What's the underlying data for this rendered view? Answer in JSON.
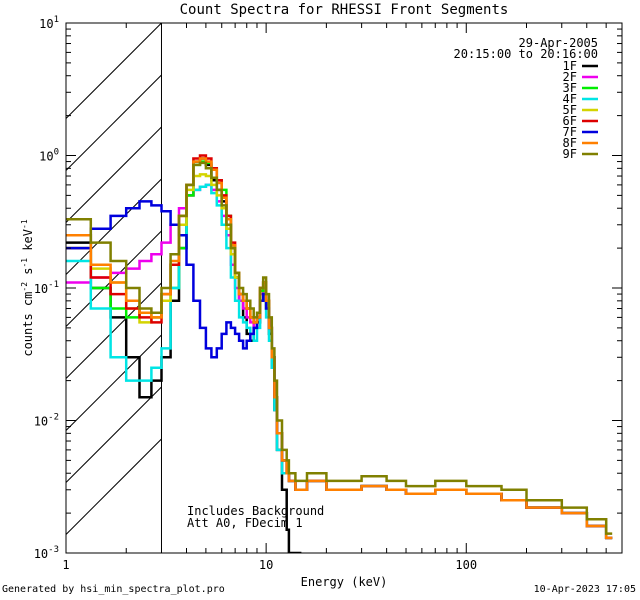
{
  "chart_data": {
    "type": "line",
    "title": "Count Spectra for RHESSI Front Segments",
    "xlabel": "Energy (keV)",
    "ylabel_parts": [
      "counts cm",
      "-2",
      " s",
      "-1",
      " keV",
      "-1"
    ],
    "xscale": "log",
    "yscale": "log",
    "xlim": [
      1,
      600
    ],
    "ylim": [
      0.001,
      10
    ],
    "x_tick_labels": [
      {
        "v": 1,
        "t": "1"
      },
      {
        "v": 10,
        "t": "10"
      },
      {
        "v": 100,
        "t": "100"
      }
    ],
    "y_tick_labels": [
      {
        "v": 0.001,
        "m": "10",
        "e": "-3"
      },
      {
        "v": 0.01,
        "m": "10",
        "e": "-2"
      },
      {
        "v": 0.1,
        "m": "10",
        "e": "-1"
      },
      {
        "v": 1,
        "m": "10",
        "e": "0"
      },
      {
        "v": 10,
        "m": "10",
        "e": "1"
      }
    ],
    "attenuator_region_keV": [
      1,
      3
    ],
    "date": "29-Apr-2005",
    "time_range": "20:15:00 to 20:16:00",
    "annotations": [
      "Includes Background",
      "Att A0, FDecim 1"
    ],
    "series": [
      {
        "name": "1F",
        "color": "#000000",
        "x": [
          1,
          1.33,
          1.67,
          2,
          2.33,
          2.67,
          3,
          3.33,
          3.67,
          4,
          4.33,
          4.67,
          5,
          5.33,
          5.67,
          6,
          6.33,
          6.67,
          7,
          7.33,
          7.67,
          8,
          8.33,
          8.67,
          9,
          9.33,
          9.67,
          10,
          10.33,
          10.67,
          11,
          11.33,
          12,
          12.67,
          13,
          14
        ],
        "y": [
          0.22,
          0.1,
          0.06,
          0.03,
          0.015,
          0.02,
          0.03,
          0.08,
          0.2,
          0.5,
          0.9,
          0.95,
          0.85,
          0.65,
          0.55,
          0.45,
          0.3,
          0.2,
          0.12,
          0.08,
          0.06,
          0.045,
          0.04,
          0.05,
          0.055,
          0.1,
          0.11,
          0.07,
          0.045,
          0.025,
          0.012,
          0.006,
          0.003,
          0.0015,
          0.001,
          0.001
        ]
      },
      {
        "name": "2F",
        "color": "#ee00ee",
        "x": [
          1,
          1.33,
          1.67,
          2,
          2.33,
          2.67,
          3,
          3.33,
          3.67,
          4,
          4.33,
          4.67,
          5,
          5.33,
          5.67,
          6,
          6.33,
          6.67,
          7,
          7.33,
          7.67,
          8,
          8.33,
          8.67,
          9,
          9.33,
          9.67,
          10,
          10.33,
          10.67,
          11,
          11.33,
          12,
          12.67,
          13,
          14,
          16,
          20,
          25,
          30,
          40,
          50,
          70,
          100,
          150,
          200,
          300,
          400,
          500
        ],
        "y": [
          0.11,
          0.12,
          0.13,
          0.14,
          0.16,
          0.18,
          0.22,
          0.3,
          0.4,
          0.5,
          0.55,
          0.58,
          0.6,
          0.55,
          0.45,
          0.35,
          0.25,
          0.15,
          0.1,
          0.08,
          0.07,
          0.06,
          0.055,
          0.05,
          0.06,
          0.09,
          0.1,
          0.08,
          0.05,
          0.03,
          0.015,
          0.008,
          0.005,
          0.004,
          0.0035,
          0.003,
          0.0035,
          0.003,
          0.003,
          0.0032,
          0.003,
          0.0028,
          0.003,
          0.0028,
          0.0025,
          0.0022,
          0.002,
          0.0016,
          0.0013
        ]
      },
      {
        "name": "3F",
        "color": "#00ee00",
        "x": [
          1,
          1.33,
          1.67,
          2,
          2.33,
          2.67,
          3,
          3.33,
          3.67,
          4,
          4.33,
          4.67,
          5,
          5.33,
          5.67,
          6,
          6.33,
          6.67,
          7,
          7.33,
          7.67,
          8,
          8.33,
          8.67,
          9,
          9.33,
          9.67,
          10,
          10.33,
          10.67,
          11,
          11.33,
          12,
          12.67,
          13,
          14,
          16,
          20,
          25,
          30,
          40,
          50,
          70,
          100,
          150,
          200,
          300,
          400,
          500
        ],
        "y": [
          0.2,
          0.1,
          0.07,
          0.06,
          0.065,
          0.06,
          0.08,
          0.1,
          0.2,
          0.5,
          0.85,
          0.9,
          0.88,
          0.78,
          0.65,
          0.55,
          0.35,
          0.2,
          0.12,
          0.09,
          0.08,
          0.07,
          0.06,
          0.055,
          0.06,
          0.095,
          0.1,
          0.075,
          0.05,
          0.03,
          0.015,
          0.008,
          0.005,
          0.004,
          0.0035,
          0.003,
          0.0035,
          0.003,
          0.003,
          0.0032,
          0.003,
          0.0028,
          0.003,
          0.0028,
          0.0025,
          0.0022,
          0.002,
          0.0016,
          0.0013
        ]
      },
      {
        "name": "4F",
        "color": "#00e5e5",
        "x": [
          1,
          1.33,
          1.67,
          2,
          2.33,
          2.67,
          3,
          3.33,
          3.67,
          4,
          4.33,
          4.67,
          5,
          5.33,
          5.67,
          6,
          6.33,
          6.67,
          7,
          7.33,
          7.67,
          8,
          8.33,
          8.67,
          9,
          9.33,
          9.67,
          10,
          10.33,
          10.67,
          11,
          11.33,
          12,
          12.67,
          13,
          14,
          16,
          20,
          25,
          30,
          40,
          50,
          70,
          100,
          150,
          200,
          300,
          400,
          500
        ],
        "y": [
          0.16,
          0.07,
          0.03,
          0.02,
          0.02,
          0.025,
          0.035,
          0.1,
          0.25,
          0.6,
          0.55,
          0.58,
          0.6,
          0.52,
          0.42,
          0.3,
          0.2,
          0.12,
          0.08,
          0.06,
          0.055,
          0.05,
          0.045,
          0.04,
          0.05,
          0.08,
          0.09,
          0.06,
          0.04,
          0.025,
          0.012,
          0.006,
          0.004,
          0.004,
          0.0035,
          0.003,
          0.0035,
          0.003,
          0.003,
          0.0032,
          0.003,
          0.0028,
          0.003,
          0.0028,
          0.0025,
          0.0022,
          0.002,
          0.0016,
          0.0013
        ]
      },
      {
        "name": "5F",
        "color": "#d4d400",
        "x": [
          1,
          1.33,
          1.67,
          2,
          2.33,
          2.67,
          3,
          3.33,
          3.67,
          4,
          4.33,
          4.67,
          5,
          5.33,
          5.67,
          6,
          6.33,
          6.67,
          7,
          7.33,
          7.67,
          8,
          8.33,
          8.67,
          9,
          9.33,
          9.67,
          10,
          10.33,
          10.67,
          11,
          11.33,
          12,
          12.67,
          13,
          14,
          16,
          20,
          25,
          30,
          40,
          50,
          70,
          100,
          150,
          200,
          300,
          400,
          500
        ],
        "y": [
          0.25,
          0.14,
          0.11,
          0.07,
          0.055,
          0.06,
          0.08,
          0.15,
          0.3,
          0.55,
          0.7,
          0.72,
          0.7,
          0.6,
          0.5,
          0.4,
          0.28,
          0.18,
          0.12,
          0.09,
          0.08,
          0.07,
          0.06,
          0.055,
          0.06,
          0.1,
          0.11,
          0.08,
          0.05,
          0.03,
          0.015,
          0.008,
          0.005,
          0.004,
          0.0035,
          0.003,
          0.0035,
          0.003,
          0.003,
          0.0032,
          0.003,
          0.0028,
          0.003,
          0.0028,
          0.0025,
          0.0022,
          0.002,
          0.0016,
          0.0013
        ]
      },
      {
        "name": "6F",
        "color": "#dd0000",
        "x": [
          1,
          1.33,
          1.67,
          2,
          2.33,
          2.67,
          3,
          3.33,
          3.67,
          4,
          4.33,
          4.67,
          5,
          5.33,
          5.67,
          6,
          6.33,
          6.67,
          7,
          7.33,
          7.67,
          8,
          8.33,
          8.67,
          9,
          9.33,
          9.67,
          10,
          10.33,
          10.67,
          11,
          11.33,
          12,
          12.67,
          13,
          14,
          16,
          20,
          25,
          30,
          40,
          50,
          70,
          100,
          150,
          200,
          300,
          400,
          500
        ],
        "y": [
          0.2,
          0.12,
          0.09,
          0.07,
          0.06,
          0.055,
          0.09,
          0.15,
          0.35,
          0.6,
          0.95,
          1.0,
          0.95,
          0.8,
          0.65,
          0.5,
          0.35,
          0.22,
          0.13,
          0.09,
          0.08,
          0.07,
          0.06,
          0.055,
          0.06,
          0.1,
          0.11,
          0.08,
          0.05,
          0.03,
          0.015,
          0.008,
          0.005,
          0.004,
          0.0035,
          0.003,
          0.0035,
          0.003,
          0.003,
          0.0032,
          0.003,
          0.0028,
          0.003,
          0.0028,
          0.0025,
          0.0022,
          0.002,
          0.0016,
          0.0013
        ]
      },
      {
        "name": "7F",
        "color": "#0000dd",
        "x": [
          1,
          1.33,
          1.67,
          2,
          2.33,
          2.67,
          3,
          3.33,
          3.67,
          4,
          4.33,
          4.67,
          5,
          5.33,
          5.67,
          6,
          6.33,
          6.67,
          7,
          7.33,
          7.67,
          8,
          8.33,
          8.67,
          9,
          9.33,
          9.67,
          10,
          10.33,
          10.67,
          11,
          11.33,
          12,
          12.67,
          13,
          14,
          16,
          20,
          25,
          30,
          40,
          50,
          70,
          100,
          150,
          200,
          300,
          400,
          500
        ],
        "y": [
          0.2,
          0.28,
          0.35,
          0.4,
          0.45,
          0.42,
          0.38,
          0.3,
          0.25,
          0.15,
          0.08,
          0.05,
          0.035,
          0.03,
          0.035,
          0.045,
          0.055,
          0.05,
          0.045,
          0.04,
          0.035,
          0.04,
          0.045,
          0.05,
          0.06,
          0.08,
          0.09,
          0.07,
          0.05,
          0.03,
          0.015,
          0.008,
          0.005,
          0.004,
          0.0035,
          0.003,
          0.0035,
          0.003,
          0.003,
          0.0032,
          0.003,
          0.0028,
          0.003,
          0.0028,
          0.0025,
          0.0022,
          0.002,
          0.0016,
          0.0013
        ]
      },
      {
        "name": "8F",
        "color": "#ff8000",
        "x": [
          1,
          1.33,
          1.67,
          2,
          2.33,
          2.67,
          3,
          3.33,
          3.67,
          4,
          4.33,
          4.67,
          5,
          5.33,
          5.67,
          6,
          6.33,
          6.67,
          7,
          7.33,
          7.67,
          8,
          8.33,
          8.67,
          9,
          9.33,
          9.67,
          10,
          10.33,
          10.67,
          11,
          11.33,
          12,
          12.67,
          13,
          14,
          16,
          20,
          25,
          30,
          40,
          50,
          70,
          100,
          150,
          200,
          300,
          400,
          500
        ],
        "y": [
          0.25,
          0.15,
          0.11,
          0.08,
          0.065,
          0.06,
          0.09,
          0.16,
          0.35,
          0.6,
          0.9,
          0.95,
          0.9,
          0.78,
          0.62,
          0.48,
          0.33,
          0.21,
          0.13,
          0.09,
          0.08,
          0.07,
          0.06,
          0.055,
          0.06,
          0.1,
          0.11,
          0.08,
          0.05,
          0.03,
          0.015,
          0.008,
          0.005,
          0.004,
          0.0035,
          0.003,
          0.0035,
          0.003,
          0.003,
          0.0032,
          0.003,
          0.0028,
          0.003,
          0.0028,
          0.0025,
          0.0022,
          0.002,
          0.0016,
          0.0013
        ]
      },
      {
        "name": "9F",
        "color": "#808000",
        "x": [
          1,
          1.33,
          1.67,
          2,
          2.33,
          2.67,
          3,
          3.33,
          3.67,
          4,
          4.33,
          4.67,
          5,
          5.33,
          5.67,
          6,
          6.33,
          6.67,
          7,
          7.33,
          7.67,
          8,
          8.33,
          8.67,
          9,
          9.33,
          9.67,
          10,
          10.33,
          10.67,
          11,
          11.33,
          12,
          12.67,
          13,
          14,
          16,
          20,
          25,
          30,
          40,
          50,
          70,
          100,
          150,
          200,
          300,
          400,
          500
        ],
        "y": [
          0.33,
          0.22,
          0.16,
          0.1,
          0.07,
          0.065,
          0.1,
          0.18,
          0.35,
          0.6,
          0.85,
          0.88,
          0.8,
          0.68,
          0.55,
          0.42,
          0.3,
          0.2,
          0.13,
          0.1,
          0.09,
          0.08,
          0.07,
          0.06,
          0.065,
          0.1,
          0.12,
          0.09,
          0.06,
          0.035,
          0.02,
          0.01,
          0.006,
          0.005,
          0.004,
          0.0035,
          0.004,
          0.0035,
          0.0035,
          0.0038,
          0.0035,
          0.0032,
          0.0035,
          0.0032,
          0.003,
          0.0025,
          0.0022,
          0.0018,
          0.0014
        ]
      }
    ]
  },
  "footer": {
    "left": "Generated by hsi_min_spectra_plot.pro",
    "right": "10-Apr-2023 17:05"
  }
}
